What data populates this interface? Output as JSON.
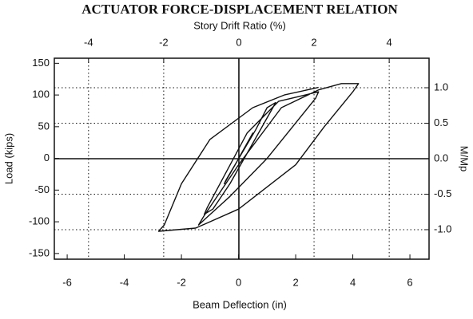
{
  "chart_data": {
    "type": "line",
    "title": "ACTUATOR FORCE-DISPLACEMENT RELATION",
    "xlabel": "Beam Deflection (in)",
    "ylabel": "Load (kips)",
    "x2label": "Story Drift Ratio (%)",
    "y2label": "M/Mp",
    "color": "#111111",
    "x": [
      0,
      0.5,
      0.45,
      -0.5,
      -0.45,
      0.6,
      1.0,
      1.3,
      1.2,
      -0.3,
      -0.9,
      -1.2,
      -1.1,
      0.3,
      1.4,
      2.8,
      2.7,
      1.0,
      -0.3,
      -1.4,
      -1.2,
      0,
      1.5,
      2.8,
      3.6,
      4.2,
      4.0,
      3.0,
      2.0,
      0,
      -1.5,
      -2.8,
      -2.6,
      -2.0,
      -1.0,
      0.5,
      1.6,
      2.8
    ],
    "values": [
      0,
      40,
      35,
      -40,
      -35,
      45,
      80,
      88,
      80,
      -40,
      -80,
      -88,
      -78,
      40,
      90,
      105,
      95,
      0,
      -60,
      -105,
      -90,
      -10,
      80,
      108,
      118,
      118,
      105,
      50,
      -10,
      -80,
      -110,
      -115,
      -105,
      -40,
      30,
      80,
      100,
      112
    ],
    "xlim": [
      -6.45,
      6.67
    ],
    "xticks": [
      -6,
      -4,
      -2,
      0,
      2,
      4,
      6
    ],
    "ylim": [
      -159,
      158
    ],
    "yticks": [
      -150,
      -100,
      -50,
      0,
      50,
      100,
      150
    ],
    "x2lim": [
      -4.91,
      5.06
    ],
    "x2ticks": [
      -4,
      -2,
      0,
      2,
      4
    ],
    "y2lim": [
      -1.416,
      1.416
    ],
    "y2ticks": [
      {
        "value": 1.0,
        "label": "1.0"
      },
      0.5,
      {
        "value": 0.0,
        "label": "0.0"
      },
      -0.5,
      {
        "value": -1.0,
        "label": "-1.0"
      }
    ],
    "grid": true
  }
}
